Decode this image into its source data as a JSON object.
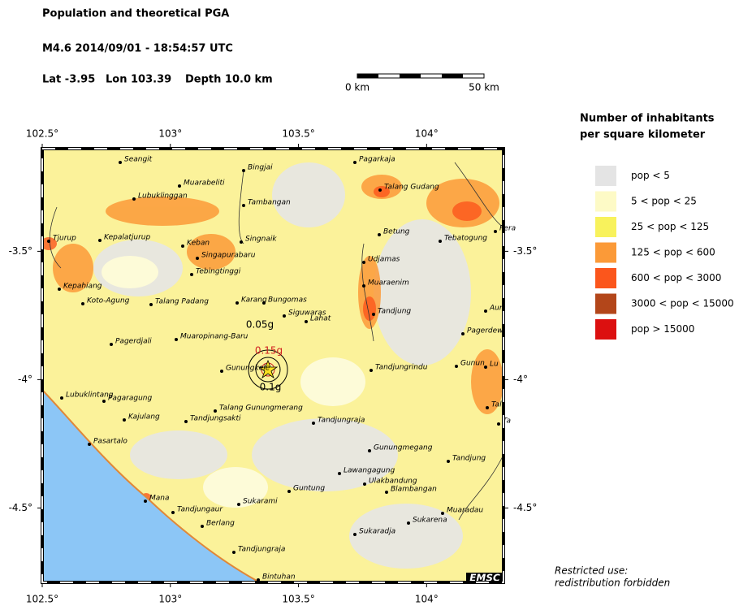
{
  "header": {
    "title": "Population and theoretical PGA",
    "event": "M4.6  2014/09/01 - 18:54:57 UTC",
    "lat": "Lat -3.95",
    "lon": "Lon 103.39",
    "depth": "Depth  10.0 km"
  },
  "scale_bar": {
    "start": "0 km",
    "end": "50 km"
  },
  "map": {
    "lonlim": [
      102.5,
      104.3
    ],
    "latlim": [
      -4.79,
      -3.1
    ],
    "lon_ticks": [
      {
        "value": 102.5,
        "label": "102.5°"
      },
      {
        "value": 103,
        "label": "103°"
      },
      {
        "value": 103.5,
        "label": "103.5°"
      },
      {
        "value": 104,
        "label": "104°"
      }
    ],
    "lat_ticks": [
      {
        "value": -3.5,
        "label": "-3.5°"
      },
      {
        "value": -4,
        "label": "-4°"
      },
      {
        "value": -4.5,
        "label": "-4.5°"
      }
    ],
    "pga_labels": [
      "0.15g",
      "0.1g",
      "0.05g"
    ],
    "towns": [
      "Seangit",
      "Muarabeliti",
      "Bingjai",
      "Lubuklinggan",
      "Tambangan",
      "Pagarkaja",
      "Talang Gudang",
      "Tjurup",
      "Kepalatjurup",
      "Keban",
      "Singnaik",
      "Singapurabaru",
      "Tebingtinggi",
      "Betung",
      "Tebatogung",
      "Pera",
      "Udjamas",
      "Muaraenim",
      "Kepahiang",
      "Koto-Agung",
      "Talang Padang",
      "Karang",
      "Bungomas",
      "Siguwaras",
      "Lahat",
      "Tandjung",
      "Aur",
      "Pagerdjali",
      "Muaropinang-Baru",
      "Pagerdew",
      "Gunungkele",
      "Tandjungrindu",
      "Gunun",
      "Lu",
      "Lubuklintang",
      "Pagaragung",
      "Tal",
      "Kajulang",
      "Talang Gunungmerang",
      "Tandjungsakti",
      "Tandjungraja",
      "Ta",
      "Pasartalo",
      "Gunungmegang",
      "Tandjung",
      "Lawangagung",
      "Ulakbandung",
      "Blambangan",
      "Mana",
      "Guntung",
      "Sukarami",
      "Tandjungaur",
      "Muaradau",
      "Sukarena",
      "Berlang",
      "Sukaradja",
      "Tandjungraja",
      "Bintuhan"
    ],
    "credit": "EMSC"
  },
  "legend": {
    "title_lines": [
      "Number of inhabitants",
      "per square kilometer"
    ],
    "items": [
      {
        "label": "pop < 5",
        "color": "#e4e4e4"
      },
      {
        "label": "5 < pop < 25",
        "color": "#fdfac6"
      },
      {
        "label": "25 < pop < 125",
        "color": "#f8f25c"
      },
      {
        "label": "125 < pop < 600",
        "color": "#fb9a38"
      },
      {
        "label": "600 < pop < 3000",
        "color": "#fb561c"
      },
      {
        "label": "3000 < pop < 15000",
        "color": "#b3461a"
      },
      {
        "label": "pop > 15000",
        "color": "#dc1010"
      }
    ]
  },
  "notice": [
    "Restricted use:",
    "redistribution forbidden"
  ]
}
